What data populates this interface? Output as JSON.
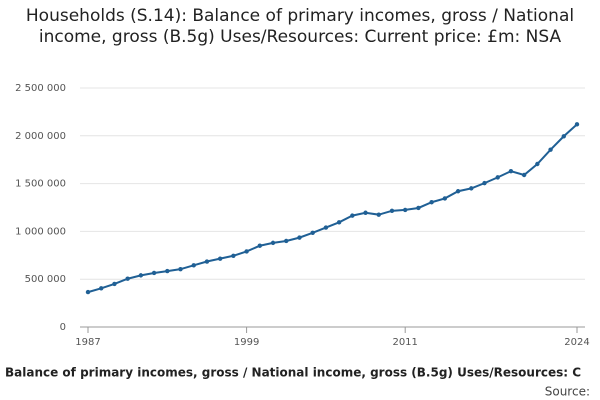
{
  "chart_data": {
    "type": "line",
    "title": "Households (S.14): Balance of primary incomes, gross / National income, gross (B.5g) Uses/Resources: Current price: £m: NSA",
    "x": [
      1987,
      1988,
      1989,
      1990,
      1991,
      1992,
      1993,
      1994,
      1995,
      1996,
      1997,
      1998,
      1999,
      2000,
      2001,
      2002,
      2003,
      2004,
      2005,
      2006,
      2007,
      2008,
      2009,
      2010,
      2011,
      2012,
      2013,
      2014,
      2015,
      2016,
      2017,
      2018,
      2019,
      2020,
      2021,
      2022,
      2023,
      2024
    ],
    "series": [
      {
        "name": "Balance of primary incomes, gross / National income, gross (B.5g) Uses/Resources: C",
        "color": "#206095",
        "values": [
          365000,
          405000,
          450000,
          505000,
          540000,
          565000,
          585000,
          605000,
          645000,
          685000,
          715000,
          745000,
          790000,
          850000,
          880000,
          900000,
          935000,
          985000,
          1040000,
          1095000,
          1165000,
          1195000,
          1175000,
          1215000,
          1225000,
          1245000,
          1305000,
          1345000,
          1420000,
          1450000,
          1505000,
          1565000,
          1630000,
          1590000,
          1705000,
          1855000,
          1995000,
          2120000
        ]
      }
    ],
    "xlim": [
      1987,
      2024
    ],
    "xticks": [
      1987,
      1999,
      2011,
      2024
    ],
    "ylim": [
      0,
      2500000
    ],
    "yticks": [
      0,
      {
        "value": 500000,
        "label": "500 000"
      },
      {
        "value": 1000000,
        "label": "1 000 000"
      },
      {
        "value": 1500000,
        "label": "1 500 000"
      },
      {
        "value": 2000000,
        "label": "2 000 000"
      },
      {
        "value": 2500000,
        "label": "2 500 000"
      }
    ],
    "grid": true,
    "source": "Source:"
  }
}
